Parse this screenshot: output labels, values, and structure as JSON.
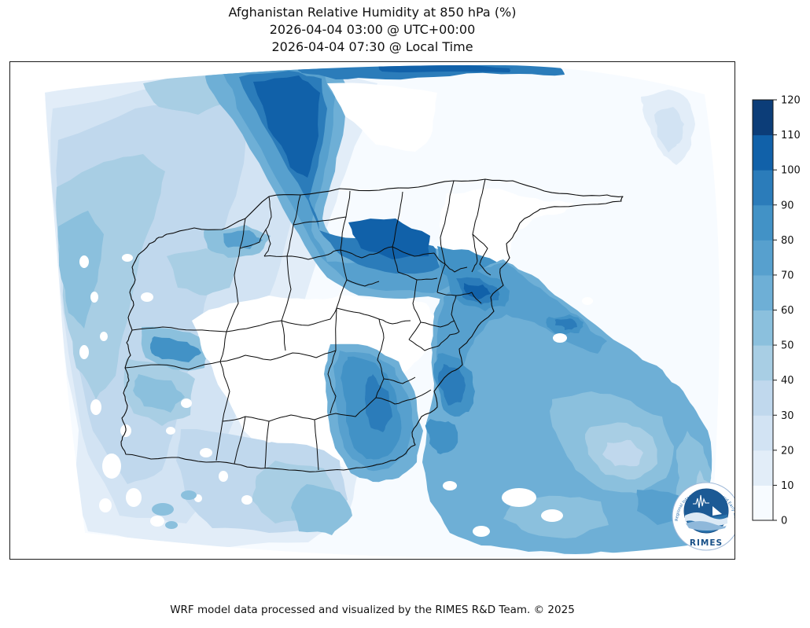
{
  "title": {
    "line1": "Afghanistan Relative Humidity at 850 hPa (%)",
    "line2": "2026-04-04 03:00 @ UTC+00:00",
    "line3": "2026-04-04 07:30 @ Local Time"
  },
  "footer": {
    "credit": "WRF model data processed and visualized by the RIMES R&D Team. © 2025"
  },
  "logo": {
    "name": "RIMES",
    "ring_text": "Regional Integrated Multi-Hazard Early Warning System"
  },
  "colorbar": {
    "min": 0,
    "max": 120,
    "step": 10,
    "tick_labels": [
      "0",
      "10",
      "20",
      "30",
      "40",
      "50",
      "60",
      "70",
      "80",
      "90",
      "100",
      "110",
      "120"
    ],
    "colors_low_to_high": [
      "#f7fbff",
      "#e2edf8",
      "#d2e3f3",
      "#c0d8ed",
      "#a8cee4",
      "#8bc0dd",
      "#6eafd6",
      "#57a0ce",
      "#4292c6",
      "#2b7cba",
      "#1161a9",
      "#0c3d78"
    ]
  },
  "palette": {
    "c0": "#f7fbff",
    "c1": "#e2edf8",
    "c2": "#d2e3f3",
    "c3": "#c0d8ed",
    "c4": "#a8cee4",
    "c5": "#8bc0dd",
    "c6": "#6eafd6",
    "c7": "#57a0ce",
    "c8": "#4292c6",
    "c9": "#2b7cba",
    "c10": "#1161a9",
    "c11": "#0c3d78",
    "white": "#ffffff",
    "boundary": "#0a0a0a",
    "frame": "#1a1a1a",
    "logo_blue": "#2a72ab",
    "logo_dark": "#1c5a95",
    "logo_navy": "#174f87",
    "logo_ring": "#2a6fae",
    "logo_wave_light": "#dce9f5",
    "logo_wave_mid": "#8fb8da"
  },
  "chart_data": {
    "type": "map-contour",
    "title": "Afghanistan Relative Humidity at 850 hPa (%)",
    "variable": "Relative Humidity",
    "pressure_level": "850 hPa",
    "units": "%",
    "valid_time_utc": "2026-04-04 03:00 @ UTC+00:00",
    "valid_time_local": "2026-04-04 07:30 @ Local Time",
    "model": "WRF",
    "colorbar_range": [
      0,
      120
    ],
    "contour_interval": 10,
    "contour_levels": [
      0,
      10,
      20,
      30,
      40,
      50,
      60,
      70,
      80,
      90,
      100,
      110,
      120
    ],
    "legend_position": "right",
    "basemap": "Afghanistan province boundaries",
    "attribution": "WRF model data processed and visualized by the RIMES R&D Team. © 2025"
  }
}
